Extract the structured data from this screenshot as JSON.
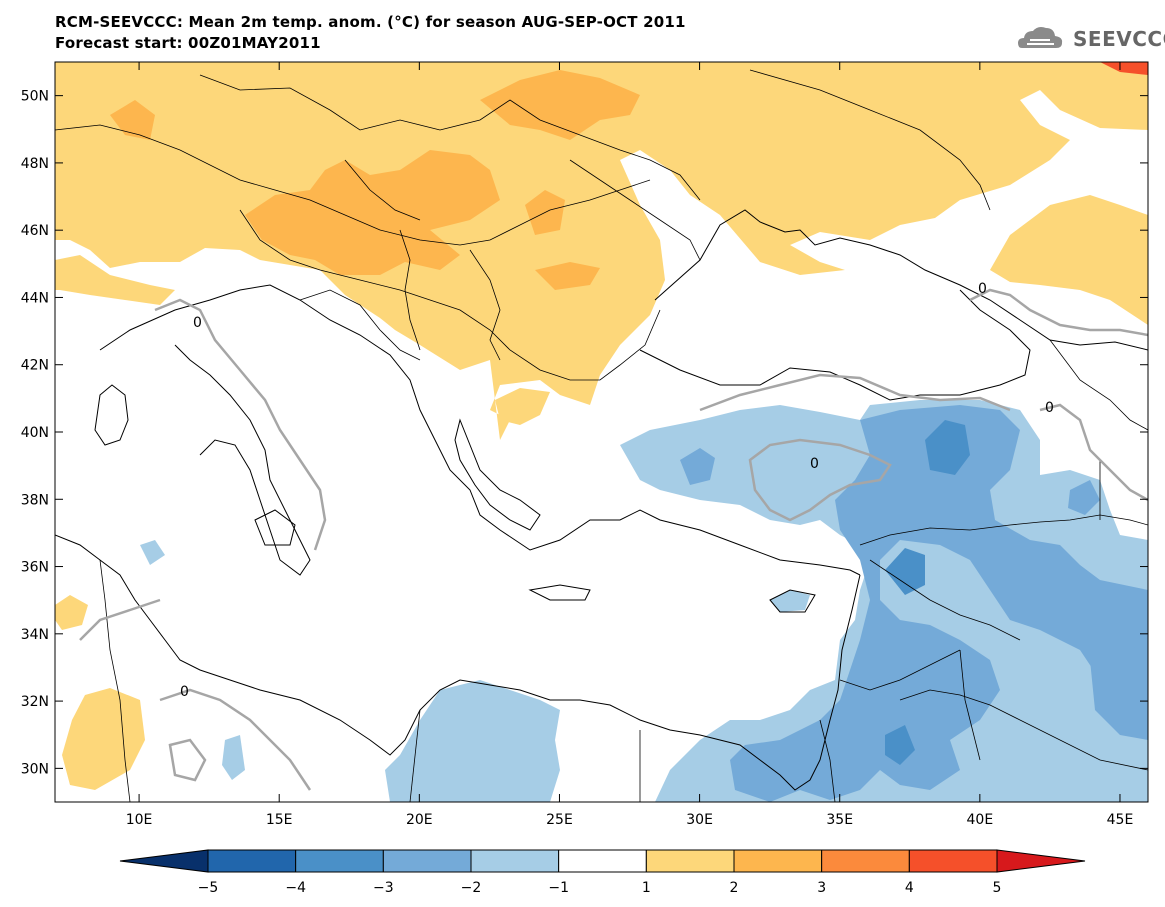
{
  "header": {
    "title_line1": "RCM-SEEVCCC: Mean 2m temp. anom. (°C) for season AUG-SEP-OCT 2011",
    "title_line2": "Forecast start: 00Z01MAY2011",
    "logo_text": "SEEVCCC"
  },
  "map": {
    "lon_range": [
      7,
      46
    ],
    "lat_range": [
      29,
      51
    ],
    "lat_labels": [
      "50N",
      "48N",
      "46N",
      "44N",
      "42N",
      "40N",
      "38N",
      "36N",
      "34N",
      "32N",
      "30N"
    ],
    "lat_values": [
      50,
      48,
      46,
      44,
      42,
      40,
      38,
      36,
      34,
      32,
      30
    ],
    "lon_labels": [
      "10E",
      "15E",
      "20E",
      "25E",
      "30E",
      "35E",
      "40E",
      "45E"
    ],
    "lon_values": [
      10,
      15,
      20,
      25,
      30,
      35,
      40,
      45
    ],
    "contour_label": "0"
  },
  "colorbar": {
    "labels": [
      "−5",
      "−4",
      "−3",
      "−2",
      "−1",
      "1",
      "2",
      "3",
      "4",
      "5"
    ],
    "colors": [
      "#08306b",
      "#2166ac",
      "#4a90c8",
      "#74aad8",
      "#a6cde6",
      "#ffffff",
      "#fdd77a",
      "#fdb64e",
      "#fb8a3c",
      "#f5502a",
      "#d7191c"
    ]
  },
  "colors": {
    "warm1": "#fdd77a",
    "warm2": "#fdb64e",
    "cool1": "#a6cde6",
    "cool2": "#74aad8",
    "cool3": "#4a90c8",
    "contour_zero": "#a6a6a6"
  }
}
